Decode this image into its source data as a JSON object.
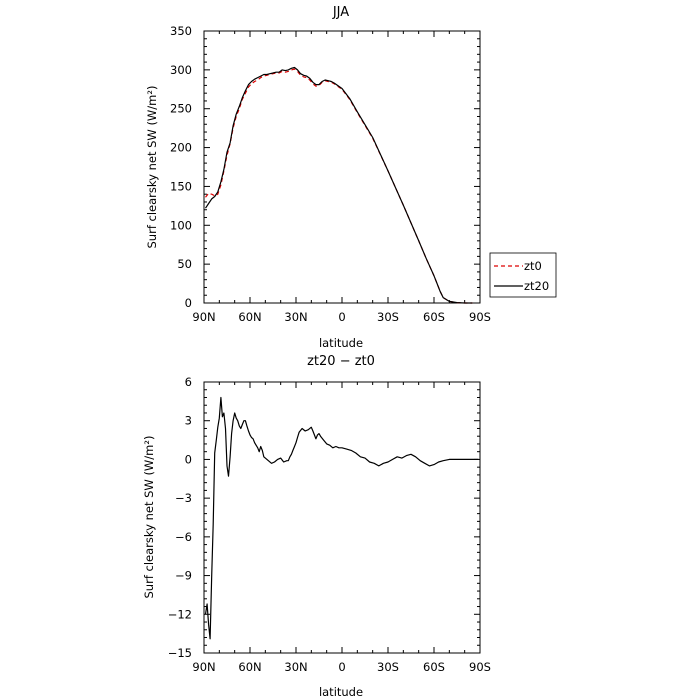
{
  "chart_data": [
    {
      "type": "line",
      "title": "JJA",
      "xlabel": "latitude",
      "ylabel": "Surf clearsky net SW (W/m²)",
      "xlim": [
        90,
        -90
      ],
      "ylim": [
        0,
        350
      ],
      "xticks": [
        90,
        60,
        30,
        0,
        -30,
        -60,
        -90
      ],
      "xtick_labels": [
        "90N",
        "60N",
        "30N",
        "0",
        "30S",
        "60S",
        "90S"
      ],
      "yticks": [
        0,
        50,
        100,
        150,
        200,
        250,
        300,
        350
      ],
      "ytick_labels": [
        "0",
        "50",
        "100",
        "150",
        "200",
        "250",
        "300",
        "350"
      ],
      "legend_position": "outside-right",
      "grid": false,
      "series": [
        {
          "name": "zt0",
          "color": "#dd0000",
          "style": "dashed",
          "x": [
            89,
            87,
            85,
            83,
            81,
            79,
            77,
            75,
            73,
            71,
            69,
            67,
            65,
            63,
            61,
            59,
            57,
            55,
            53,
            51,
            49,
            47,
            45,
            43,
            41,
            39,
            37,
            35,
            33,
            31,
            29,
            27,
            25,
            23,
            21,
            19,
            17,
            15,
            13,
            11,
            9,
            7,
            5,
            0,
            -5,
            -10,
            -20,
            -30,
            -40,
            -50,
            -55,
            -60,
            -62,
            -64,
            -66,
            -70,
            -75,
            -80,
            -85
          ],
          "y": [
            136,
            141,
            140,
            138,
            140,
            152,
            170,
            190,
            205,
            225,
            240,
            250,
            262,
            270,
            278,
            282,
            285,
            287,
            290,
            292,
            293,
            294,
            295,
            296,
            296,
            298,
            297,
            298,
            300,
            301,
            298,
            293,
            291,
            290,
            287,
            282,
            279,
            280,
            284,
            286,
            285,
            284,
            282,
            275,
            262,
            245,
            212,
            170,
            126,
            80,
            57,
            35,
            25,
            15,
            7,
            2,
            0.5,
            0,
            0
          ]
        },
        {
          "name": "zt20",
          "color": "#000000",
          "style": "solid",
          "x": [
            89,
            87,
            85,
            83,
            81,
            79,
            77,
            75,
            73,
            71,
            69,
            67,
            65,
            63,
            61,
            59,
            57,
            55,
            53,
            51,
            49,
            47,
            45,
            43,
            41,
            39,
            37,
            35,
            33,
            31,
            29,
            27,
            25,
            23,
            21,
            19,
            17,
            15,
            13,
            11,
            9,
            7,
            5,
            0,
            -5,
            -10,
            -20,
            -30,
            -40,
            -50,
            -55,
            -60,
            -62,
            -64,
            -66,
            -70,
            -75,
            -80,
            -85
          ],
          "y": [
            122,
            128,
            134,
            137,
            143,
            156,
            172,
            194,
            206,
            228,
            243,
            253,
            264,
            273,
            281,
            285,
            288,
            290,
            292,
            294,
            294,
            295,
            296,
            297,
            297,
            300,
            299,
            300,
            302,
            303,
            300,
            295,
            293,
            292,
            289,
            284,
            281,
            281,
            285,
            287,
            286,
            285,
            283,
            276,
            263,
            246,
            213,
            170,
            126,
            80,
            57,
            35,
            25,
            15,
            7,
            2,
            0.5,
            0,
            0
          ]
        }
      ]
    },
    {
      "type": "line",
      "title": "zt20 − zt0",
      "xlabel": "latitude",
      "ylabel": "Surf clearsky net SW (W/m²)",
      "xlim": [
        90,
        -90
      ],
      "ylim": [
        -15,
        6
      ],
      "xticks": [
        90,
        60,
        30,
        0,
        -30,
        -60,
        -90
      ],
      "xtick_labels": [
        "90N",
        "60N",
        "30N",
        "0",
        "30S",
        "60S",
        "90S"
      ],
      "yticks": [
        6,
        3,
        0,
        -3,
        -6,
        -9,
        -12,
        -15
      ],
      "ytick_labels": [
        "6",
        "3",
        "0",
        "−3",
        "−6",
        "−9",
        "−12",
        "−15"
      ],
      "grid": false,
      "series": [
        {
          "color": "#000000",
          "style": "solid",
          "x": [
            89,
            88,
            87,
            86,
            85,
            84,
            83,
            82,
            81,
            80,
            79,
            78,
            77,
            76,
            75,
            74,
            73,
            72,
            71,
            70,
            69,
            68,
            67,
            66,
            65,
            64,
            63,
            62,
            61,
            60,
            59,
            58,
            57,
            56,
            55,
            54,
            53,
            52,
            51,
            50,
            48,
            46,
            44,
            42,
            40,
            38,
            36,
            35,
            34,
            33,
            32,
            31,
            30,
            29,
            28,
            26,
            24,
            22,
            20,
            19,
            18,
            17,
            16,
            15,
            14,
            12,
            10,
            8,
            6,
            4,
            2,
            0,
            -3,
            -6,
            -9,
            -12,
            -15,
            -18,
            -21,
            -24,
            -27,
            -30,
            -33,
            -36,
            -39,
            -42,
            -45,
            -48,
            -51,
            -54,
            -57,
            -60,
            -63,
            -66,
            -70,
            -75,
            -80,
            -85,
            -89
          ],
          "y": [
            -12.0,
            -11.2,
            -12.8,
            -13.9,
            -9.0,
            -5.0,
            0.5,
            1.5,
            2.5,
            3.2,
            4.8,
            3.3,
            3.6,
            2.4,
            -0.5,
            -1.3,
            0.2,
            2.0,
            3.0,
            3.6,
            3.2,
            3.0,
            2.6,
            2.4,
            2.7,
            3.0,
            3.0,
            2.6,
            2.2,
            1.9,
            1.7,
            1.6,
            1.3,
            1.1,
            0.9,
            0.6,
            1.0,
            0.7,
            0.2,
            0.1,
            -0.1,
            -0.3,
            -0.2,
            0.0,
            0.1,
            -0.2,
            -0.1,
            -0.1,
            0.2,
            0.4,
            0.7,
            1.0,
            1.3,
            1.7,
            2.1,
            2.4,
            2.2,
            2.3,
            2.5,
            2.2,
            1.9,
            1.6,
            1.9,
            2.0,
            1.8,
            1.5,
            1.2,
            1.1,
            0.9,
            1.0,
            0.9,
            0.9,
            0.8,
            0.7,
            0.5,
            0.2,
            0.1,
            -0.2,
            -0.3,
            -0.5,
            -0.3,
            -0.2,
            0.0,
            0.2,
            0.1,
            0.3,
            0.4,
            0.2,
            -0.1,
            -0.3,
            -0.5,
            -0.4,
            -0.2,
            -0.1,
            0.0,
            0.0,
            0.0,
            0.0,
            0.0
          ]
        }
      ]
    }
  ]
}
